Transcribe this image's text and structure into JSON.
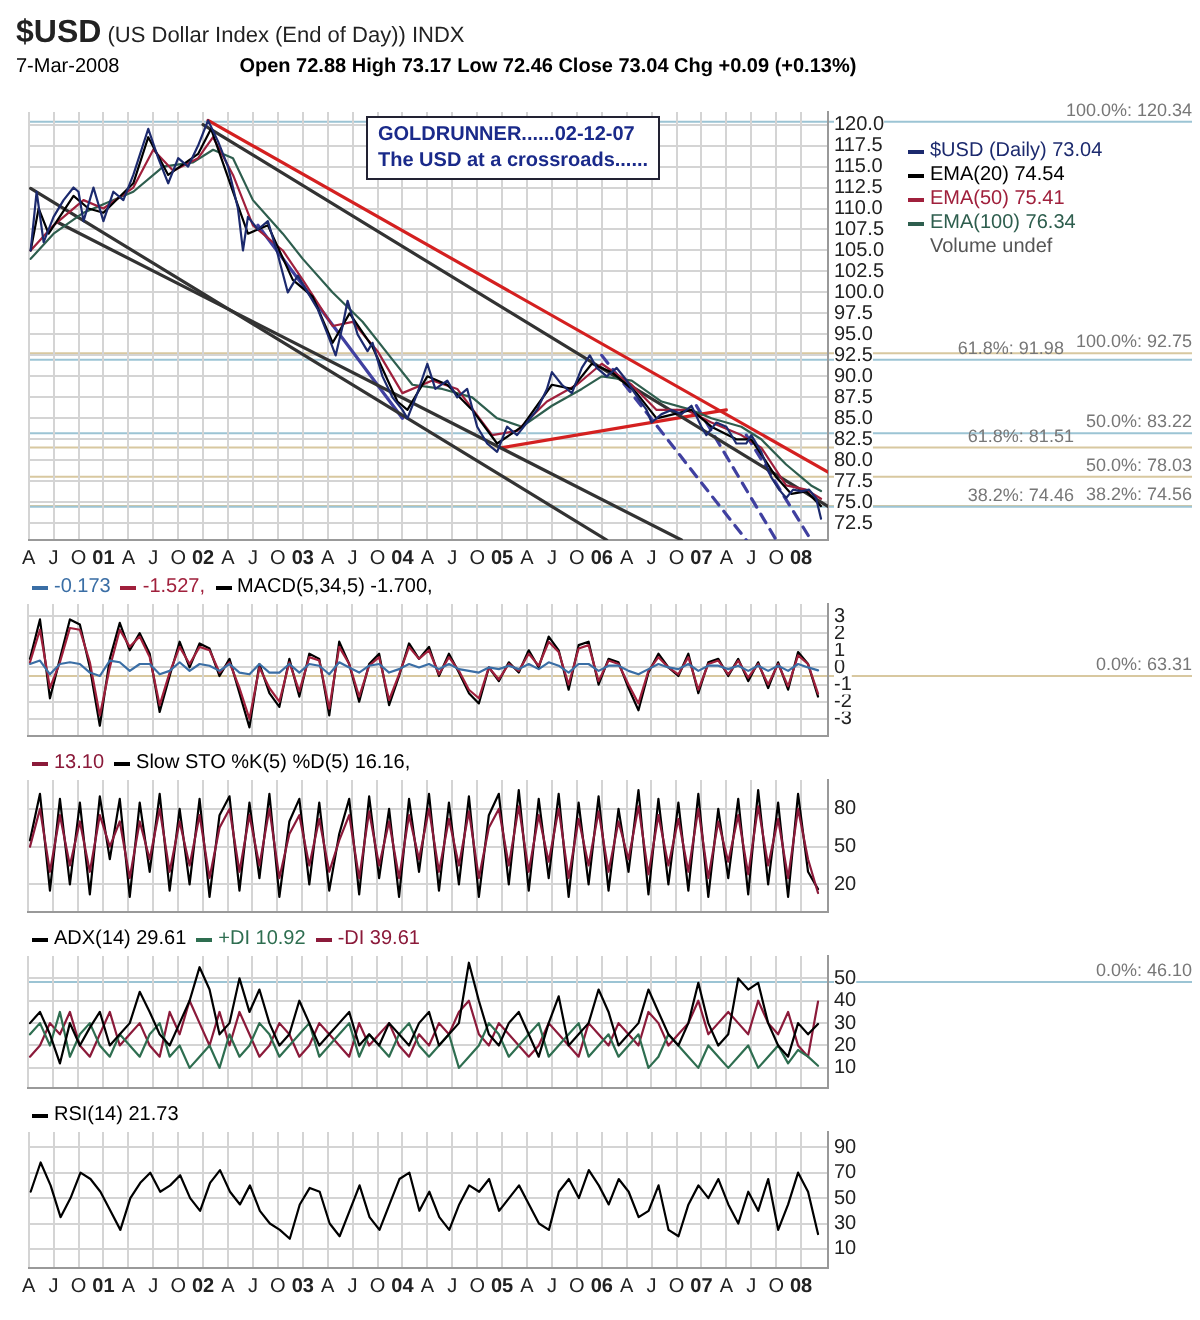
{
  "chart_data": [
    {
      "type": "line",
      "title": "$USD (US Dollar Index (End of Day)) INDX",
      "subtitle": "7-Mar-2008",
      "annotations": [
        "Open 72.88 High 73.17 Low 72.46 Close 73.04 Chg +0.09 (+0.13%)",
        "GOLDRUNNER......02-12-07",
        "The USD at a crossroads......",
        "Volume undef"
      ],
      "legend": "right",
      "grid": true,
      "xlim": [
        2000.25,
        2008.27
      ],
      "xticks": [
        {
          "value": 2000.25,
          "label": "A"
        },
        {
          "value": 2000.5,
          "label": "J"
        },
        {
          "value": 2000.75,
          "label": "O"
        },
        {
          "value": 2001,
          "label": "01"
        },
        {
          "value": 2001.25,
          "label": "A"
        },
        {
          "value": 2001.5,
          "label": "J"
        },
        {
          "value": 2001.75,
          "label": "O"
        },
        {
          "value": 2002,
          "label": "02"
        },
        {
          "value": 2002.25,
          "label": "A"
        },
        {
          "value": 2002.5,
          "label": "J"
        },
        {
          "value": 2002.75,
          "label": "O"
        },
        {
          "value": 2003,
          "label": "03"
        },
        {
          "value": 2003.25,
          "label": "A"
        },
        {
          "value": 2003.5,
          "label": "J"
        },
        {
          "value": 2003.75,
          "label": "O"
        },
        {
          "value": 2004,
          "label": "04"
        },
        {
          "value": 2004.25,
          "label": "A"
        },
        {
          "value": 2004.5,
          "label": "J"
        },
        {
          "value": 2004.75,
          "label": "O"
        },
        {
          "value": 2005,
          "label": "05"
        },
        {
          "value": 2005.25,
          "label": "A"
        },
        {
          "value": 2005.5,
          "label": "J"
        },
        {
          "value": 2005.75,
          "label": "O"
        },
        {
          "value": 2006,
          "label": "06"
        },
        {
          "value": 2006.25,
          "label": "A"
        },
        {
          "value": 2006.5,
          "label": "J"
        },
        {
          "value": 2006.75,
          "label": "O"
        },
        {
          "value": 2007,
          "label": "07"
        },
        {
          "value": 2007.25,
          "label": "A"
        },
        {
          "value": 2007.5,
          "label": "J"
        },
        {
          "value": 2007.75,
          "label": "O"
        },
        {
          "value": 2008,
          "label": "08"
        }
      ],
      "ylim": [
        70.5,
        121.5
      ],
      "yticks": [
        72.5,
        {
          "value": 75,
          "label": "75.0"
        },
        77.5,
        {
          "value": 80,
          "label": "80.0"
        },
        82.5,
        {
          "value": 85,
          "label": "85.0"
        },
        87.5,
        {
          "value": 90,
          "label": "90.0"
        },
        92.5,
        {
          "value": 95,
          "label": "95.0"
        },
        97.5,
        {
          "value": 100,
          "label": "100.0"
        },
        102.5,
        {
          "value": 105,
          "label": "105.0"
        },
        107.5,
        {
          "value": 110,
          "label": "110.0"
        },
        112.5,
        {
          "value": 115,
          "label": "115.0"
        },
        117.5,
        {
          "value": 120,
          "label": "120.0"
        }
      ],
      "ref_lines": [
        {
          "axis": "y",
          "value": 120.34,
          "label": "100.0%: 120.34",
          "color": "#9cc4d4"
        },
        {
          "axis": "y",
          "value": 92.75,
          "label": "100.0%: 92.75",
          "color": "#d8c8a0"
        },
        {
          "axis": "y",
          "value": 91.98,
          "label": "61.8%: 91.98",
          "color": "#9cc4d4"
        },
        {
          "axis": "y",
          "value": 83.22,
          "label": "50.0%: 83.22",
          "color": "#9cc4d4"
        },
        {
          "axis": "y",
          "value": 81.51,
          "label": "61.8%: 81.51",
          "color": "#d8c8a0"
        },
        {
          "axis": "y",
          "value": 78.03,
          "label": "50.0%: 78.03",
          "color": "#d8c8a0"
        },
        {
          "axis": "y",
          "value": 74.56,
          "label": "38.2%: 74.56",
          "color": "#d8c8a0"
        },
        {
          "axis": "y",
          "value": 74.46,
          "label": "38.2%: 74.46",
          "color": "#9cc4d4"
        }
      ],
      "series": [
        {
          "name": "$USD (Daily) 73.04",
          "color": "#1c2a6e",
          "x": [
            2000.27,
            2000.33,
            2000.4,
            2000.5,
            2000.6,
            2000.7,
            2000.75,
            2000.8,
            2000.9,
            2001.0,
            2001.1,
            2001.2,
            2001.3,
            2001.45,
            2001.55,
            2001.65,
            2001.75,
            2001.85,
            2001.95,
            2002.05,
            2002.15,
            2002.25,
            2002.35,
            2002.4,
            2002.45,
            2002.55,
            2002.65,
            2002.75,
            2002.85,
            2002.95,
            2003.05,
            2003.15,
            2003.25,
            2003.33,
            2003.4,
            2003.45,
            2003.55,
            2003.65,
            2003.7,
            2003.8,
            2003.9,
            2004.0,
            2004.05,
            2004.15,
            2004.25,
            2004.33,
            2004.45,
            2004.55,
            2004.65,
            2004.75,
            2004.85,
            2004.95,
            2005.05,
            2005.15,
            2005.25,
            2005.35,
            2005.45,
            2005.5,
            2005.6,
            2005.7,
            2005.8,
            2005.88,
            2005.95,
            2006.05,
            2006.15,
            2006.25,
            2006.33,
            2006.45,
            2006.5,
            2006.6,
            2006.7,
            2006.8,
            2006.9,
            2007.0,
            2007.05,
            2007.15,
            2007.25,
            2007.35,
            2007.45,
            2007.5,
            2007.6,
            2007.7,
            2007.78,
            2007.85,
            2007.92,
            2008.0,
            2008.08,
            2008.15,
            2008.2
          ],
          "values": [
            105,
            112,
            106,
            109,
            111,
            112.5,
            112,
            108.5,
            112.5,
            108.5,
            112,
            111,
            114,
            119.5,
            116,
            113,
            116,
            115,
            117.5,
            120.5,
            118,
            115,
            110,
            105,
            109,
            107.5,
            108.5,
            104.5,
            100,
            102,
            100,
            98,
            95,
            92.5,
            96,
            99,
            95,
            93,
            94,
            90,
            87.5,
            86,
            85,
            88,
            91.5,
            88.5,
            89.5,
            87.5,
            88.5,
            84,
            82,
            81,
            84,
            83,
            84.5,
            86,
            88.5,
            90.5,
            89,
            88,
            91,
            92.5,
            91,
            90,
            91,
            89.5,
            88,
            86,
            84.5,
            85.5,
            86,
            85.5,
            86.5,
            84,
            83,
            84.5,
            84,
            82,
            82,
            83,
            81,
            78,
            76.5,
            75.5,
            76.5,
            76.3,
            76.5,
            75.5,
            73.04
          ]
        },
        {
          "name": "EMA(20) 74.54",
          "color": "#000000",
          "x": [
            2000.27,
            2000.35,
            2000.45,
            2000.7,
            2000.85,
            2001.0,
            2001.3,
            2001.45,
            2001.65,
            2001.95,
            2002.08,
            2002.3,
            2002.45,
            2002.65,
            2002.9,
            2003.1,
            2003.3,
            2003.47,
            2003.7,
            2003.95,
            2004.05,
            2004.25,
            2004.45,
            2004.7,
            2004.95,
            2005.2,
            2005.5,
            2005.7,
            2005.9,
            2006.1,
            2006.35,
            2006.55,
            2006.9,
            2007.1,
            2007.35,
            2007.5,
            2007.75,
            2007.9,
            2008.05,
            2008.2
          ],
          "values": [
            105,
            110,
            107,
            111.5,
            110,
            109.5,
            113,
            118.5,
            114,
            116.5,
            119.5,
            112,
            107,
            108,
            101.5,
            99.5,
            94,
            97.5,
            93.5,
            87,
            86,
            90,
            89,
            86,
            82,
            84,
            89,
            88.5,
            91.5,
            90.5,
            88,
            85,
            86,
            84,
            82.5,
            82.5,
            78,
            76,
            76.3,
            74.54
          ]
        },
        {
          "name": "EMA(50) 75.41",
          "color": "#a0203c",
          "x": [
            2000.27,
            2000.5,
            2000.8,
            2001.0,
            2001.3,
            2001.5,
            2001.7,
            2001.95,
            2002.1,
            2002.3,
            2002.5,
            2002.8,
            2003.0,
            2003.3,
            2003.5,
            2003.75,
            2004.0,
            2004.3,
            2004.55,
            2004.9,
            2005.15,
            2005.45,
            2005.75,
            2006.0,
            2006.3,
            2006.55,
            2006.85,
            2007.1,
            2007.4,
            2007.6,
            2007.85,
            2008.05,
            2008.2
          ],
          "values": [
            105,
            108,
            111,
            110,
            112.5,
            117,
            114.5,
            116,
            118.5,
            114,
            108,
            105,
            101.5,
            96,
            96.5,
            93,
            88,
            89.5,
            88.5,
            83,
            83.5,
            87,
            89,
            91.5,
            89,
            86,
            86,
            84.5,
            83,
            81.5,
            77,
            76.5,
            75.41
          ]
        },
        {
          "name": "EMA(100) 76.34",
          "color": "#2e5e4e",
          "x": [
            2000.27,
            2000.5,
            2000.8,
            2001.0,
            2001.3,
            2001.6,
            2001.9,
            2002.1,
            2002.3,
            2002.5,
            2002.8,
            2003.0,
            2003.3,
            2003.6,
            2003.9,
            2004.1,
            2004.4,
            2004.7,
            2004.95,
            2005.2,
            2005.5,
            2005.8,
            2006.0,
            2006.3,
            2006.6,
            2006.9,
            2007.1,
            2007.4,
            2007.6,
            2007.85,
            2008.1,
            2008.2
          ],
          "values": [
            104,
            107,
            109.5,
            110.5,
            112,
            115,
            115.5,
            117,
            116,
            111,
            107,
            104,
            100,
            96.5,
            92,
            89,
            88.5,
            87.5,
            85,
            84,
            86.5,
            88.5,
            90,
            89.5,
            87,
            86,
            85,
            84,
            82.5,
            79.5,
            77,
            76.34
          ]
        },
        {
          "type": "line",
          "color": "#d42020",
          "x": [
            2002.05,
            2008.27
          ],
          "values": [
            120.5,
            78.6
          ]
        },
        {
          "type": "line",
          "color": "#333333",
          "x": [
            2002.0,
            2008.27
          ],
          "values": [
            120,
            74.5
          ]
        },
        {
          "type": "line",
          "color": "#333333",
          "x": [
            2000.27,
            2006.05
          ],
          "values": [
            112.4,
            70.5
          ]
        },
        {
          "type": "line",
          "color": "#333333",
          "x": [
            2000.55,
            2006.8
          ],
          "values": [
            108.3,
            70.5
          ]
        },
        {
          "type": "line",
          "color": "#d42020",
          "x": [
            2005.0,
            2007.25
          ],
          "values": [
            81.5,
            86
          ]
        },
        {
          "type": "line",
          "color": "#4040a0",
          "x": [
            2002.55,
            2004.0
          ],
          "values": [
            108,
            85
          ]
        },
        {
          "type": "line",
          "color": "#4040a0",
          "line_style": "dashed",
          "x": [
            2006.0,
            2007.45
          ],
          "values": [
            92.5,
            70.5
          ]
        },
        {
          "type": "line",
          "color": "#4040a0",
          "line_style": "dashed",
          "x": [
            2006.95,
            2007.75
          ],
          "values": [
            86.5,
            70.5
          ]
        },
        {
          "type": "line",
          "color": "#4040a0",
          "line_style": "dashed",
          "x": [
            2007.45,
            2008.1
          ],
          "values": [
            83,
            70.5
          ]
        }
      ]
    },
    {
      "type": "line",
      "legend": "top left",
      "grid": true,
      "tick_labels": "y",
      "xlim": [
        2000.25,
        2008.27
      ],
      "xticks": [
        2000.25,
        2000.5,
        2000.75,
        2001,
        2001.25,
        2001.5,
        2001.75,
        2002,
        2002.25,
        2002.5,
        2002.75,
        2003,
        2003.25,
        2003.5,
        2003.75,
        2004,
        2004.25,
        2004.5,
        2004.75,
        2005,
        2005.25,
        2005.5,
        2005.75,
        2006,
        2006.25,
        2006.5,
        2006.75,
        2007,
        2007.25,
        2007.5,
        2007.75,
        2008
      ],
      "ylim": [
        -4,
        3.7
      ],
      "yticks": [
        -3,
        -2,
        -1,
        0,
        1,
        2,
        3
      ],
      "ref_lines": [
        {
          "axis": "y",
          "value": -0.5,
          "color": "#d8c8a0"
        }
      ],
      "annotations": [
        "0.0%: 63.31"
      ],
      "x": [
        2000.27,
        2000.37,
        2000.47,
        2000.57,
        2000.67,
        2000.77,
        2000.87,
        2000.97,
        2001.07,
        2001.17,
        2001.27,
        2001.37,
        2001.47,
        2001.57,
        2001.67,
        2001.77,
        2001.87,
        2001.97,
        2002.07,
        2002.17,
        2002.27,
        2002.37,
        2002.47,
        2002.57,
        2002.67,
        2002.77,
        2002.87,
        2002.97,
        2003.07,
        2003.17,
        2003.27,
        2003.37,
        2003.47,
        2003.57,
        2003.67,
        2003.77,
        2003.87,
        2003.97,
        2004.07,
        2004.17,
        2004.27,
        2004.37,
        2004.47,
        2004.57,
        2004.67,
        2004.77,
        2004.87,
        2004.97,
        2005.07,
        2005.17,
        2005.27,
        2005.37,
        2005.47,
        2005.57,
        2005.67,
        2005.77,
        2005.87,
        2005.97,
        2006.07,
        2006.17,
        2006.27,
        2006.37,
        2006.47,
        2006.57,
        2006.67,
        2006.77,
        2006.87,
        2006.97,
        2007.07,
        2007.17,
        2007.27,
        2007.37,
        2007.47,
        2007.57,
        2007.67,
        2007.77,
        2007.87,
        2007.97,
        2008.07,
        2008.17
      ],
      "series": [
        {
          "name": "-0.173",
          "color": "#3a6ea5",
          "values": [
            0.2,
            0.4,
            -0.4,
            0.2,
            0.3,
            0.2,
            -0.3,
            -0.5,
            0.4,
            0.3,
            -0.2,
            0.2,
            0.2,
            -0.4,
            -0.2,
            0.3,
            -0.2,
            0.2,
            0.1,
            -0.2,
            0.2,
            -0.3,
            -0.4,
            0.2,
            -0.3,
            -0.3,
            0.2,
            -0.3,
            0.2,
            0.1,
            -0.4,
            0.3,
            0,
            -0.3,
            0.1,
            0.2,
            -0.3,
            -0.1,
            0.2,
            0,
            0.2,
            -0.1,
            0.2,
            -0.1,
            -0.2,
            -0.3,
            0,
            -0.1,
            0.1,
            -0.1,
            0.2,
            -0.1,
            0.3,
            0.1,
            -0.3,
            0.2,
            0.2,
            -0.2,
            0.1,
            0.1,
            -0.2,
            -0.4,
            -0.1,
            0.2,
            0,
            -0.1,
            0.2,
            -0.2,
            0.1,
            0.1,
            -0.1,
            0.1,
            -0.2,
            0.1,
            -0.2,
            0.1,
            -0.2,
            0.2,
            0,
            -0.173
          ]
        },
        {
          "name": "-1.527,",
          "color": "#a0203c",
          "values": [
            0.3,
            2.2,
            -1.2,
            0.3,
            2.3,
            2.2,
            0.3,
            -2.8,
            0,
            2.2,
            1.2,
            1.8,
            0.6,
            -2.2,
            -0.3,
            1.2,
            0.2,
            1.2,
            1,
            -0.3,
            0.3,
            -1.2,
            -3,
            0,
            -1.2,
            -2,
            0.3,
            -1.4,
            0.6,
            0.4,
            -2.4,
            1.2,
            0.2,
            -1.7,
            0.1,
            0.6,
            -1.9,
            -0.4,
            1.2,
            0.5,
            1,
            -0.4,
            0.6,
            -0.2,
            -1.3,
            -1.8,
            0,
            -0.7,
            0.2,
            -0.2,
            0.8,
            0.1,
            1.5,
            0.9,
            -1,
            1.1,
            1.3,
            -0.8,
            0.4,
            0.2,
            -1,
            -2.1,
            -0.2,
            0.6,
            0,
            -0.4,
            0.6,
            -1.3,
            0.2,
            0.4,
            -0.4,
            0.4,
            -0.6,
            0.2,
            -1,
            0.2,
            -1.1,
            0.7,
            0.2,
            -1.527
          ]
        },
        {
          "name": "MACD(5,34,5) -1.700,",
          "color": "#000000",
          "values": [
            0.5,
            2.8,
            -1.8,
            0.5,
            2.8,
            2.5,
            0,
            -3.4,
            0.5,
            2.6,
            1,
            2,
            0.8,
            -2.6,
            -0.5,
            1.5,
            0,
            1.4,
            1.1,
            -0.5,
            0.5,
            -1.5,
            -3.5,
            0.2,
            -1.5,
            -2.3,
            0.5,
            -1.7,
            0.8,
            0.5,
            -2.8,
            1.5,
            0.2,
            -2,
            0.2,
            0.8,
            -2.2,
            -0.5,
            1.4,
            0.5,
            1.2,
            -0.5,
            0.8,
            -0.3,
            -1.5,
            -2.1,
            0,
            -0.8,
            0.3,
            -0.3,
            1,
            0,
            1.8,
            1,
            -1.3,
            1.3,
            1.5,
            -1,
            0.5,
            0.3,
            -1.2,
            -2.5,
            -0.3,
            0.8,
            0,
            -0.5,
            0.8,
            -1.5,
            0.3,
            0.5,
            -0.5,
            0.5,
            -0.8,
            0.3,
            -1.2,
            0.3,
            -1.3,
            0.9,
            0.2,
            -1.7
          ]
        }
      ]
    },
    {
      "type": "line",
      "legend": "top left",
      "grid": true,
      "tick_labels": "y",
      "xlim": [
        2000.25,
        2008.27
      ],
      "xticks": [
        2000.25,
        2000.5,
        2000.75,
        2001,
        2001.25,
        2001.5,
        2001.75,
        2002,
        2002.25,
        2002.5,
        2002.75,
        2003,
        2003.25,
        2003.5,
        2003.75,
        2004,
        2004.25,
        2004.5,
        2004.75,
        2005,
        2005.25,
        2005.5,
        2005.75,
        2006,
        2006.25,
        2006.5,
        2006.75,
        2007,
        2007.25,
        2007.5,
        2007.75,
        2008
      ],
      "ylim": [
        -2,
        103
      ],
      "yticks": [
        20,
        50,
        80
      ],
      "x": [
        2000.27,
        2000.37,
        2000.47,
        2000.57,
        2000.67,
        2000.77,
        2000.87,
        2000.97,
        2001.07,
        2001.17,
        2001.27,
        2001.37,
        2001.47,
        2001.57,
        2001.67,
        2001.77,
        2001.87,
        2001.97,
        2002.07,
        2002.17,
        2002.27,
        2002.37,
        2002.47,
        2002.57,
        2002.67,
        2002.77,
        2002.87,
        2002.97,
        2003.07,
        2003.17,
        2003.27,
        2003.37,
        2003.47,
        2003.57,
        2003.67,
        2003.77,
        2003.87,
        2003.97,
        2004.07,
        2004.17,
        2004.27,
        2004.37,
        2004.47,
        2004.57,
        2004.67,
        2004.77,
        2004.87,
        2004.97,
        2005.07,
        2005.17,
        2005.27,
        2005.37,
        2005.47,
        2005.57,
        2005.67,
        2005.77,
        2005.87,
        2005.97,
        2006.07,
        2006.17,
        2006.27,
        2006.37,
        2006.47,
        2006.57,
        2006.67,
        2006.77,
        2006.87,
        2006.97,
        2007.07,
        2007.17,
        2007.27,
        2007.37,
        2007.47,
        2007.57,
        2007.67,
        2007.77,
        2007.87,
        2007.97,
        2008.07,
        2008.17
      ],
      "series": [
        {
          "name": "13.10",
          "color": "#8b1a3a",
          "values": [
            50,
            80,
            30,
            75,
            35,
            70,
            30,
            75,
            50,
            70,
            25,
            70,
            40,
            80,
            30,
            70,
            35,
            75,
            25,
            65,
            80,
            30,
            75,
            35,
            80,
            25,
            60,
            75,
            35,
            72,
            30,
            55,
            75,
            25,
            78,
            35,
            70,
            25,
            75,
            40,
            80,
            30,
            72,
            35,
            78,
            25,
            65,
            80,
            35,
            82,
            30,
            75,
            38,
            80,
            25,
            72,
            35,
            78,
            30,
            70,
            40,
            82,
            28,
            75,
            35,
            72,
            30,
            80,
            25,
            70,
            38,
            75,
            28,
            82,
            35,
            72,
            25,
            80,
            40,
            13.1
          ]
        },
        {
          "name": "Slow STO %K(5) %D(5) 16.16,",
          "color": "#000000",
          "values": [
            55,
            92,
            15,
            88,
            20,
            85,
            12,
            90,
            40,
            88,
            10,
            85,
            30,
            92,
            15,
            80,
            20,
            88,
            10,
            75,
            90,
            15,
            85,
            25,
            92,
            10,
            70,
            88,
            20,
            85,
            15,
            60,
            88,
            12,
            90,
            25,
            80,
            10,
            88,
            30,
            92,
            15,
            85,
            20,
            90,
            10,
            75,
            92,
            20,
            95,
            15,
            88,
            25,
            92,
            10,
            85,
            20,
            90,
            15,
            80,
            30,
            95,
            12,
            88,
            20,
            85,
            15,
            92,
            10,
            80,
            25,
            88,
            12,
            95,
            20,
            85,
            10,
            92,
            30,
            16.16
          ]
        }
      ]
    },
    {
      "type": "line",
      "legend": "top left",
      "grid": true,
      "tick_labels": "y",
      "xlim": [
        2000.25,
        2008.27
      ],
      "xticks": [
        2000.25,
        2000.5,
        2000.75,
        2001,
        2001.25,
        2001.5,
        2001.75,
        2002,
        2002.25,
        2002.5,
        2002.75,
        2003,
        2003.25,
        2003.5,
        2003.75,
        2004,
        2004.25,
        2004.5,
        2004.75,
        2005,
        2005.25,
        2005.5,
        2005.75,
        2006,
        2006.25,
        2006.5,
        2006.75,
        2007,
        2007.25,
        2007.5,
        2007.75,
        2008
      ],
      "ylim": [
        1,
        60
      ],
      "yticks": [
        10,
        20,
        30,
        40,
        50
      ],
      "ref_lines": [
        {
          "axis": "y",
          "value": 48.4,
          "color": "#9cc4d4"
        }
      ],
      "annotations": [
        "0.0%: 46.10"
      ],
      "x": [
        2000.27,
        2000.37,
        2000.47,
        2000.57,
        2000.67,
        2000.77,
        2000.87,
        2000.97,
        2001.07,
        2001.17,
        2001.27,
        2001.37,
        2001.47,
        2001.57,
        2001.67,
        2001.77,
        2001.87,
        2001.97,
        2002.07,
        2002.17,
        2002.27,
        2002.37,
        2002.47,
        2002.57,
        2002.67,
        2002.77,
        2002.87,
        2002.97,
        2003.07,
        2003.17,
        2003.27,
        2003.37,
        2003.47,
        2003.57,
        2003.67,
        2003.77,
        2003.87,
        2003.97,
        2004.07,
        2004.17,
        2004.27,
        2004.37,
        2004.47,
        2004.57,
        2004.67,
        2004.77,
        2004.87,
        2004.97,
        2005.07,
        2005.17,
        2005.27,
        2005.37,
        2005.47,
        2005.57,
        2005.67,
        2005.77,
        2005.87,
        2005.97,
        2006.07,
        2006.17,
        2006.27,
        2006.37,
        2006.47,
        2006.57,
        2006.67,
        2006.77,
        2006.87,
        2006.97,
        2007.07,
        2007.17,
        2007.27,
        2007.37,
        2007.47,
        2007.57,
        2007.67,
        2007.77,
        2007.87,
        2007.97,
        2008.07,
        2008.17
      ],
      "series": [
        {
          "name": "ADX(14) 29.61",
          "color": "#000000",
          "values": [
            30,
            35,
            25,
            12,
            30,
            20,
            28,
            35,
            20,
            25,
            30,
            44,
            35,
            25,
            20,
            30,
            40,
            55,
            45,
            25,
            30,
            50,
            35,
            45,
            30,
            20,
            25,
            40,
            30,
            20,
            25,
            30,
            35,
            20,
            25,
            20,
            30,
            25,
            20,
            30,
            35,
            20,
            25,
            30,
            57,
            40,
            25,
            20,
            30,
            35,
            25,
            15,
            30,
            42,
            20,
            25,
            30,
            45,
            35,
            20,
            25,
            30,
            45,
            35,
            25,
            20,
            30,
            48,
            30,
            20,
            25,
            50,
            45,
            48,
            30,
            20,
            15,
            30,
            25,
            29.61
          ]
        },
        {
          "name": "+DI 10.92",
          "color": "#2e6e50",
          "values": [
            25,
            30,
            20,
            35,
            15,
            25,
            30,
            20,
            15,
            25,
            20,
            15,
            25,
            30,
            15,
            20,
            10,
            15,
            20,
            10,
            25,
            15,
            20,
            30,
            25,
            15,
            20,
            25,
            30,
            15,
            20,
            25,
            30,
            15,
            25,
            20,
            15,
            25,
            30,
            20,
            15,
            20,
            25,
            10,
            15,
            20,
            30,
            25,
            15,
            20,
            25,
            30,
            15,
            20,
            25,
            30,
            15,
            20,
            25,
            15,
            20,
            25,
            10,
            15,
            25,
            20,
            15,
            10,
            20,
            15,
            10,
            15,
            20,
            10,
            15,
            20,
            12,
            18,
            15,
            10.92
          ]
        },
        {
          "name": "-DI 39.61",
          "color": "#8b1a3a",
          "values": [
            15,
            20,
            30,
            25,
            35,
            20,
            15,
            25,
            35,
            20,
            25,
            30,
            20,
            15,
            35,
            25,
            40,
            30,
            20,
            35,
            20,
            35,
            25,
            15,
            20,
            30,
            25,
            15,
            20,
            30,
            25,
            20,
            15,
            30,
            20,
            25,
            30,
            20,
            15,
            25,
            20,
            30,
            25,
            35,
            40,
            25,
            20,
            30,
            25,
            20,
            15,
            20,
            30,
            25,
            20,
            15,
            30,
            25,
            20,
            30,
            25,
            20,
            35,
            30,
            20,
            25,
            30,
            40,
            25,
            30,
            35,
            30,
            25,
            40,
            30,
            25,
            35,
            20,
            15,
            39.61
          ]
        }
      ]
    },
    {
      "type": "line",
      "legend": "top left",
      "grid": true,
      "xlim": [
        2000.25,
        2008.27
      ],
      "xticks": [
        {
          "value": 2000.25,
          "label": "A"
        },
        {
          "value": 2000.5,
          "label": "J"
        },
        {
          "value": 2000.75,
          "label": "O"
        },
        {
          "value": 2001,
          "label": "01"
        },
        {
          "value": 2001.25,
          "label": "A"
        },
        {
          "value": 2001.5,
          "label": "J"
        },
        {
          "value": 2001.75,
          "label": "O"
        },
        {
          "value": 2002,
          "label": "02"
        },
        {
          "value": 2002.25,
          "label": "A"
        },
        {
          "value": 2002.5,
          "label": "J"
        },
        {
          "value": 2002.75,
          "label": "O"
        },
        {
          "value": 2003,
          "label": "03"
        },
        {
          "value": 2003.25,
          "label": "A"
        },
        {
          "value": 2003.5,
          "label": "J"
        },
        {
          "value": 2003.75,
          "label": "O"
        },
        {
          "value": 2004,
          "label": "04"
        },
        {
          "value": 2004.25,
          "label": "A"
        },
        {
          "value": 2004.5,
          "label": "J"
        },
        {
          "value": 2004.75,
          "label": "O"
        },
        {
          "value": 2005,
          "label": "05"
        },
        {
          "value": 2005.25,
          "label": "A"
        },
        {
          "value": 2005.5,
          "label": "J"
        },
        {
          "value": 2005.75,
          "label": "O"
        },
        {
          "value": 2006,
          "label": "06"
        },
        {
          "value": 2006.25,
          "label": "A"
        },
        {
          "value": 2006.5,
          "label": "J"
        },
        {
          "value": 2006.75,
          "label": "O"
        },
        {
          "value": 2007,
          "label": "07"
        },
        {
          "value": 2007.25,
          "label": "A"
        },
        {
          "value": 2007.5,
          "label": "J"
        },
        {
          "value": 2007.75,
          "label": "O"
        },
        {
          "value": 2008,
          "label": "08"
        }
      ],
      "ylim": [
        -5,
        102
      ],
      "yticks": [
        10,
        30,
        50,
        70,
        90
      ],
      "x": [
        2000.27,
        2000.37,
        2000.47,
        2000.57,
        2000.67,
        2000.77,
        2000.87,
        2000.97,
        2001.07,
        2001.17,
        2001.27,
        2001.37,
        2001.47,
        2001.57,
        2001.67,
        2001.77,
        2001.87,
        2001.97,
        2002.07,
        2002.17,
        2002.27,
        2002.37,
        2002.47,
        2002.57,
        2002.67,
        2002.77,
        2002.87,
        2002.97,
        2003.07,
        2003.17,
        2003.27,
        2003.37,
        2003.47,
        2003.57,
        2003.67,
        2003.77,
        2003.87,
        2003.97,
        2004.07,
        2004.17,
        2004.27,
        2004.37,
        2004.47,
        2004.57,
        2004.67,
        2004.77,
        2004.87,
        2004.97,
        2005.07,
        2005.17,
        2005.27,
        2005.37,
        2005.47,
        2005.57,
        2005.67,
        2005.77,
        2005.87,
        2005.97,
        2006.07,
        2006.17,
        2006.27,
        2006.37,
        2006.47,
        2006.57,
        2006.67,
        2006.77,
        2006.87,
        2006.97,
        2007.07,
        2007.17,
        2007.27,
        2007.37,
        2007.47,
        2007.57,
        2007.67,
        2007.77,
        2007.87,
        2007.97,
        2008.07,
        2008.17
      ],
      "series": [
        {
          "name": "RSI(14) 21.73",
          "color": "#000000",
          "values": [
            55,
            78,
            60,
            35,
            50,
            70,
            65,
            55,
            40,
            25,
            50,
            62,
            70,
            55,
            60,
            68,
            50,
            40,
            62,
            72,
            55,
            45,
            60,
            40,
            30,
            25,
            18,
            45,
            58,
            55,
            30,
            20,
            40,
            60,
            35,
            25,
            45,
            65,
            70,
            40,
            55,
            35,
            25,
            45,
            60,
            55,
            65,
            40,
            50,
            60,
            45,
            30,
            25,
            55,
            65,
            50,
            72,
            60,
            45,
            65,
            55,
            35,
            40,
            60,
            25,
            20,
            45,
            60,
            50,
            65,
            45,
            30,
            55,
            40,
            65,
            25,
            45,
            70,
            55,
            21.73
          ]
        }
      ]
    }
  ]
}
